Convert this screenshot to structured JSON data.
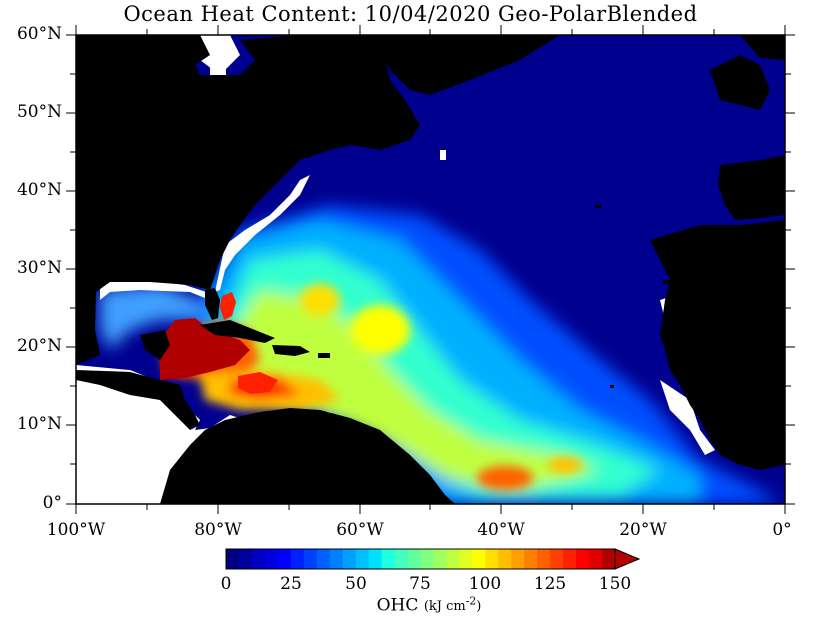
{
  "title": "Ocean Heat Content: 10/04/2020 Geo-PolarBlended",
  "lat_labels": [
    "60°N",
    "50°N",
    "40°N",
    "30°N",
    "20°N",
    "10°N",
    "0°"
  ],
  "lon_labels": [
    "100°W",
    "80°W",
    "60°W",
    "40°W",
    "20°W",
    "0°"
  ],
  "colorbar": {
    "tick_labels": [
      "0",
      "25",
      "50",
      "75",
      "100",
      "125",
      "150"
    ],
    "min": 0,
    "max": 150,
    "label_main": "OHC",
    "label_unit": "(kJ cm",
    "label_exp": "-2",
    "label_close": ")",
    "colors": [
      "#000080",
      "#00009f",
      "#0000c0",
      "#0000df",
      "#0000ff",
      "#0020ff",
      "#0040ff",
      "#0060ff",
      "#0080ff",
      "#00a0ff",
      "#00c0ff",
      "#00e0ff",
      "#20ffdf",
      "#40ffbf",
      "#60ff9f",
      "#80ff80",
      "#a0ff60",
      "#c0ff40",
      "#e0ff20",
      "#ffff00",
      "#ffdf00",
      "#ffbf00",
      "#ff9f00",
      "#ff8000",
      "#ff6000",
      "#ff4000",
      "#ff2000",
      "#ff0000",
      "#df0000",
      "#b00000"
    ]
  },
  "map_colors": {
    "ocean_deep": "#00008f",
    "land": "#000000",
    "missing": "#ffffff"
  }
}
